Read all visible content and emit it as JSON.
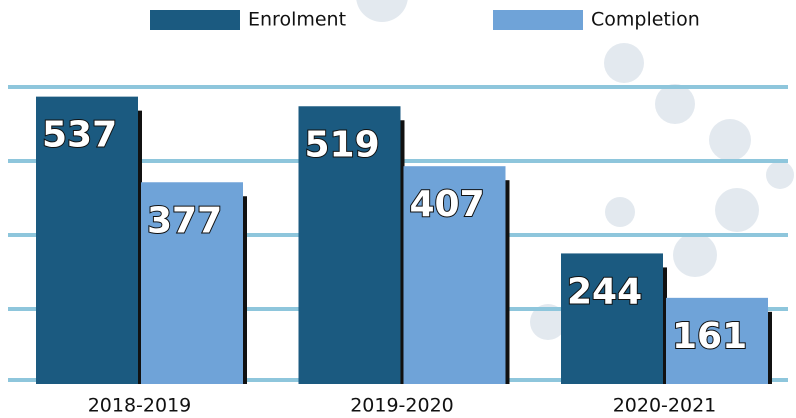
{
  "chart_data": {
    "type": "bar",
    "categories": [
      "2018-2019",
      "2019-2020",
      "2020-2021"
    ],
    "series": [
      {
        "name": "Enrolment",
        "color": "#1b5a80",
        "values": [
          537,
          519,
          244
        ]
      },
      {
        "name": "Completion",
        "color": "#6fa3d8",
        "values": [
          377,
          407,
          161
        ]
      }
    ],
    "ylim": [
      0,
      555
    ]
  }
}
